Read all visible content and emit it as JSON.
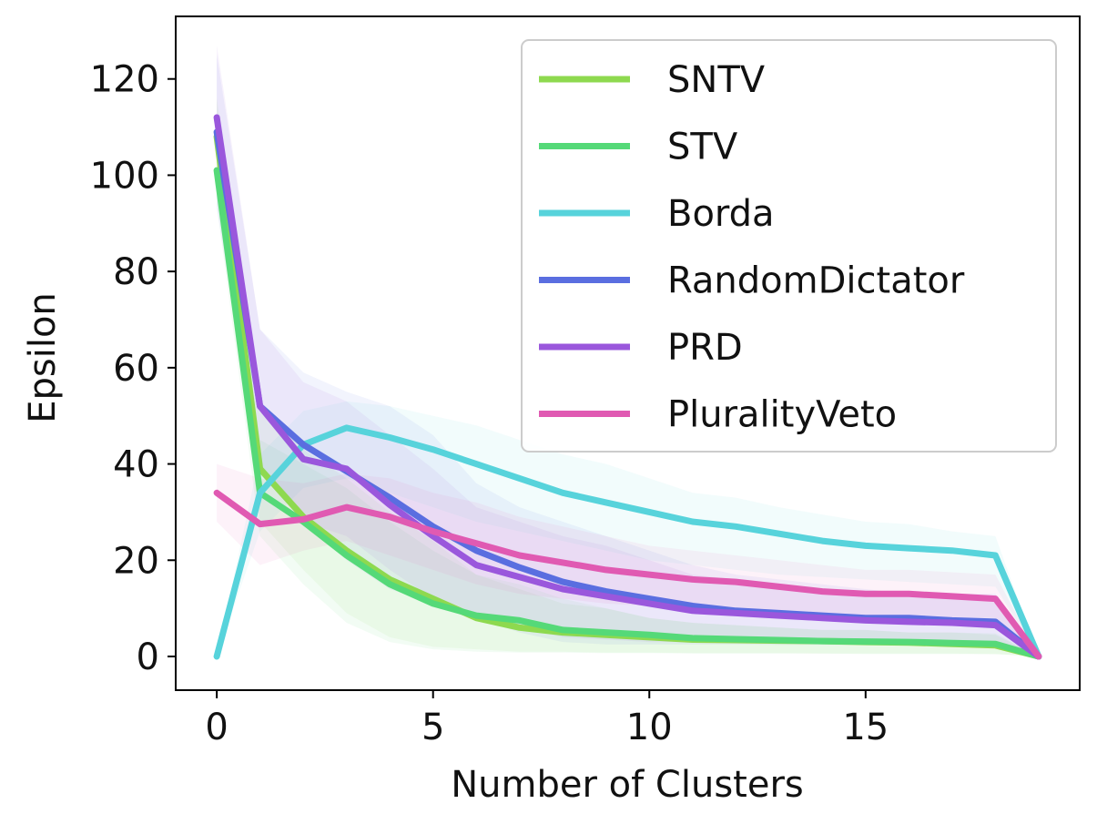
{
  "chart_data": {
    "type": "line",
    "xlabel": "Number of Clusters",
    "ylabel": "Epsilon",
    "xlim": [
      -0.95,
      19.95
    ],
    "ylim": [
      -7,
      133
    ],
    "xticks": [
      0,
      5,
      10,
      15
    ],
    "yticks": [
      0,
      20,
      40,
      60,
      80,
      100,
      120
    ],
    "grid": false,
    "legend_position": "top-right",
    "x": [
      0,
      1,
      2,
      3,
      4,
      5,
      6,
      7,
      8,
      9,
      10,
      11,
      12,
      13,
      14,
      15,
      16,
      17,
      18,
      19
    ],
    "series": [
      {
        "name": "SNTV",
        "color": "#8ed94f",
        "values": [
          108,
          39,
          29,
          22,
          16,
          12,
          8,
          6,
          5,
          4.5,
          4,
          3.5,
          3.4,
          3.3,
          3.2,
          3,
          2.9,
          2.6,
          2.3,
          0
        ],
        "lower": [
          100,
          28,
          18,
          9,
          4,
          2,
          1.5,
          1,
          1,
          0.8,
          0.8,
          0.7,
          0.7,
          0.7,
          0.6,
          0.6,
          0.6,
          0.6,
          0.5,
          0
        ],
        "upper": [
          116,
          52,
          43,
          37,
          30,
          24,
          17,
          14,
          11,
          10,
          8,
          7,
          6.5,
          6,
          5.5,
          5.5,
          5,
          5,
          4.5,
          0
        ]
      },
      {
        "name": "STV",
        "color": "#55d978",
        "values": [
          101,
          34,
          28,
          21,
          15,
          11,
          8.5,
          7.5,
          5.5,
          5,
          4.5,
          3.8,
          3.6,
          3.4,
          3.2,
          3.1,
          3,
          2.8,
          2.6,
          0
        ],
        "lower": [
          94,
          25,
          15,
          7,
          3,
          1.5,
          1,
          0.8,
          0.8,
          0.7,
          0.7,
          0.6,
          0.6,
          0.6,
          0.6,
          0.5,
          0.5,
          0.5,
          0.5,
          0
        ],
        "upper": [
          109,
          45,
          40,
          35,
          28,
          22,
          17,
          15,
          12,
          10,
          8,
          7,
          6.5,
          6,
          5.5,
          5.5,
          5,
          5,
          4.8,
          0
        ]
      },
      {
        "name": "Borda",
        "color": "#57d3db",
        "values": [
          0,
          34,
          44,
          47.5,
          45.5,
          43,
          40,
          37,
          34,
          32,
          30,
          28,
          27,
          25.5,
          24,
          23,
          22.5,
          22,
          21,
          0
        ],
        "lower": [
          0,
          26,
          35,
          37,
          34,
          31,
          28,
          26,
          24,
          22,
          20,
          19,
          18,
          17,
          16.5,
          16,
          15.5,
          15,
          14.5,
          0
        ],
        "upper": [
          0,
          42,
          51,
          53,
          52,
          50,
          48,
          45,
          42,
          40,
          37,
          34,
          33,
          31,
          29.5,
          28,
          27.5,
          26,
          25,
          0
        ]
      },
      {
        "name": "RandomDictator",
        "color": "#5a6ee0",
        "values": [
          109,
          52,
          44,
          38.5,
          33,
          27,
          22,
          18.5,
          15.5,
          13.5,
          12,
          10.5,
          9.5,
          9,
          8.5,
          8,
          8,
          7.5,
          7.2,
          0
        ],
        "lower": [
          93,
          38,
          28,
          20,
          14,
          11,
          8,
          5,
          3,
          2.5,
          2.5,
          2.5,
          2.5,
          2.4,
          2.4,
          2.3,
          2.3,
          2.2,
          2.2,
          0
        ],
        "upper": [
          125,
          68,
          59,
          55,
          52,
          46,
          36,
          31,
          28,
          25,
          22,
          19,
          17,
          16,
          15,
          14,
          13,
          13,
          13,
          0
        ]
      },
      {
        "name": "PRD",
        "color": "#9a57dc",
        "values": [
          112,
          52,
          41,
          39,
          31.5,
          25,
          19,
          16.5,
          14,
          12.5,
          11,
          9.5,
          9,
          8.5,
          8,
          7.5,
          7.2,
          7,
          6.5,
          0
        ],
        "lower": [
          97,
          38,
          28,
          25,
          18,
          12,
          8,
          6,
          4,
          3.5,
          3,
          3,
          2.8,
          2.7,
          2.6,
          2.5,
          2.4,
          2.3,
          2.2,
          0
        ],
        "upper": [
          127,
          68,
          57,
          53,
          46,
          39,
          31,
          28,
          25,
          23,
          20,
          17,
          16,
          15,
          14,
          13,
          13,
          12.5,
          12,
          0
        ]
      },
      {
        "name": "PluralityVeto",
        "color": "#e05ab2",
        "values": [
          34,
          27.5,
          28.5,
          31,
          29,
          26,
          23.5,
          21,
          19.5,
          18,
          17,
          16,
          15.5,
          14.5,
          13.5,
          13,
          13,
          12.5,
          12,
          0
        ],
        "lower": [
          28,
          19,
          22,
          24,
          21,
          18,
          15,
          13,
          12,
          11,
          10.5,
          10,
          9.5,
          9,
          8.5,
          8,
          8,
          8,
          8,
          0
        ],
        "upper": [
          40,
          37,
          36,
          38,
          37,
          34,
          32,
          29,
          27,
          25,
          23,
          22,
          21,
          20,
          19,
          18,
          18,
          17.5,
          17,
          0
        ]
      }
    ]
  }
}
